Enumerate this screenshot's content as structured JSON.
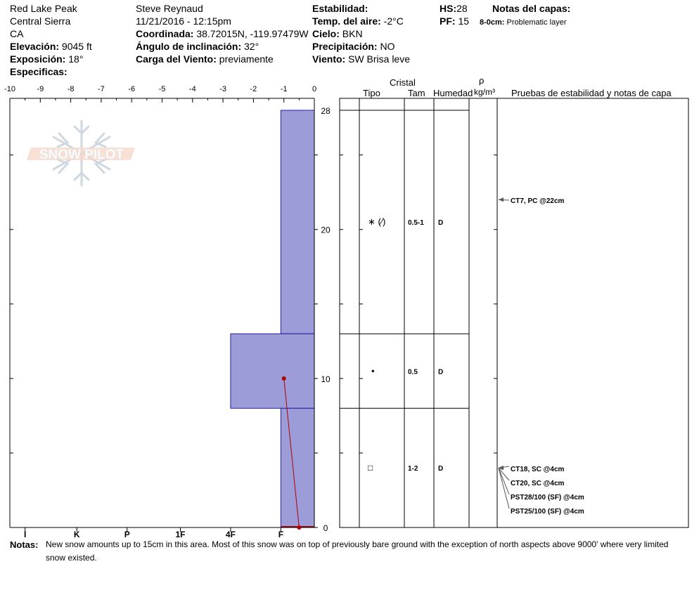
{
  "header": {
    "location": "Red Lake Peak",
    "range": "Central Sierra",
    "state": "CA",
    "elevation_label": "Elevación:",
    "elevation_value": "9045 ft",
    "aspect_label": "Exposición:",
    "aspect_value": "18°",
    "specifics_label": "Especificas:",
    "observer": "Steve Reynaud",
    "datetime": "11/21/2016 - 12:15pm",
    "coord_label": "Coordinada:",
    "coord_value": "38.72015N, -119.97479W",
    "slope_label": "Ángulo de inclinación:",
    "slope_value": "32°",
    "wind_load_label": "Carga del Viento:",
    "wind_load_value": "previamente",
    "stability_label": "Estabilidad:",
    "air_temp_label": "Temp. del aire:",
    "air_temp_value": "-2°C",
    "sky_label": "Cielo:",
    "sky_value": "BKN",
    "precip_label": "Precipitación:",
    "precip_value": "NO",
    "wind_label": "Viento:",
    "wind_value": "SW Brisa leve",
    "hs_label": "HS:",
    "hs_value": "28",
    "pf_label": "PF:",
    "pf_value": "15",
    "layer_notes_label": "Notas del capas:",
    "layer_note_depth": "8-0cm:",
    "layer_note_text": "Problematic layer"
  },
  "table_headers": {
    "crystal": "Cristal",
    "type": "Tipo",
    "size": "Tam",
    "moisture": "Humedad",
    "rho": "ρ",
    "density_unit": "kg/m³",
    "tests": "Pruebas de estabilidad y notas de capa"
  },
  "logo_text": "SNOW PILOT",
  "notes": {
    "label": "Notas:",
    "text": "New snow amounts up to 15cm in this area.  Most of this snow was on top of previously bare ground with the exception of north aspects above 9000' where very limited snow existed."
  },
  "colors": {
    "hardness_fill": "#9c9cd8",
    "hardness_stroke": "#2020a0",
    "temp_line": "#b00000"
  },
  "chart_data": {
    "type": "snow_profile",
    "temperature_axis": {
      "ticks": [
        -10,
        -9,
        -8,
        -7,
        -6,
        -5,
        -4,
        -3,
        -2,
        -1,
        0
      ],
      "tick_labels": [
        "-10",
        "-9",
        "-8",
        "-7",
        "-6",
        "-5",
        "-4",
        "-3",
        "-2",
        "-1",
        "0"
      ],
      "range": [
        -10,
        0
      ]
    },
    "hardness_axis": {
      "labels": [
        "I",
        "K",
        "P",
        "1F",
        "4F",
        "F"
      ],
      "values": [
        9.5,
        7.8,
        6.15,
        4.4,
        2.75,
        1.1
      ]
    },
    "depth_axis": {
      "range": [
        0,
        28
      ],
      "tick_labels": [
        "0",
        "10",
        "20",
        "28"
      ],
      "tick_values": [
        0,
        10,
        20,
        28
      ]
    },
    "layers": [
      {
        "top": 28,
        "bottom": 13,
        "hardness": "F",
        "hardness_value": 1.1,
        "crystal_type": "∗ (⁄)",
        "size": "0.5-1",
        "moisture": "D",
        "row_center": 20.5
      },
      {
        "top": 13,
        "bottom": 8,
        "hardness": "4F",
        "hardness_value": 2.75,
        "crystal_type": "•",
        "size": "0.5",
        "moisture": "D",
        "row_center": 10.5
      },
      {
        "top": 8,
        "bottom": 0,
        "hardness": "F",
        "hardness_value": 1.1,
        "crystal_type": "□",
        "size": "1-2",
        "moisture": "D",
        "row_center": 4
      }
    ],
    "temperature_profile": [
      {
        "depth": 10,
        "temp": -1.0
      },
      {
        "depth": 0,
        "temp": -0.5
      }
    ],
    "stability_tests": [
      {
        "label": "CT7, PC @22cm",
        "depth": 22
      },
      {
        "label": "CT18, SC @4cm",
        "depth": 4
      },
      {
        "label": "CT20, SC @4cm",
        "depth": 4
      },
      {
        "label": "PST28/100 (SF) @4cm",
        "depth": 4
      },
      {
        "label": "PST25/100 (SF) @4cm",
        "depth": 4
      }
    ]
  }
}
